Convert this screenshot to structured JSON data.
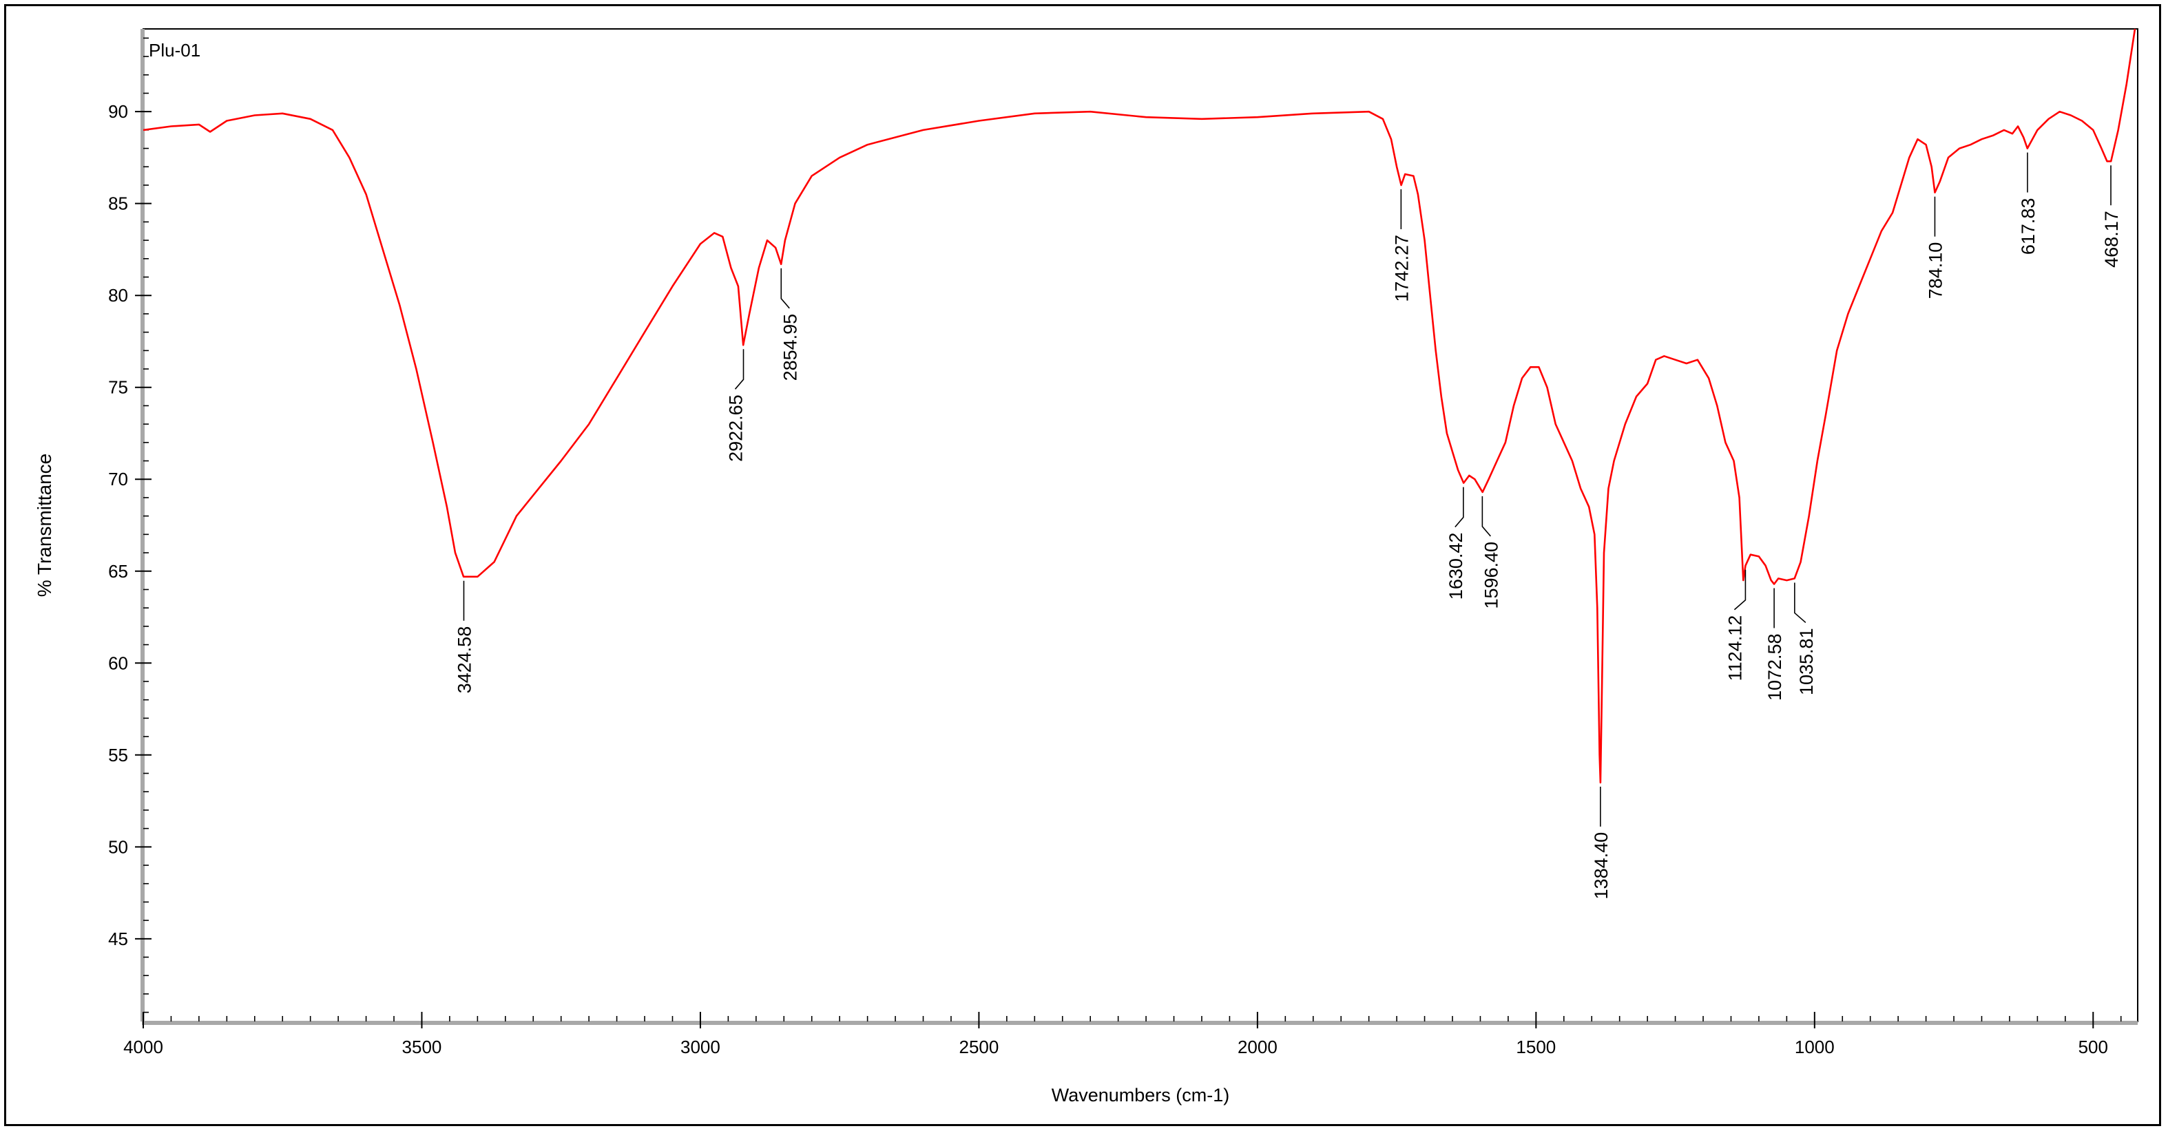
{
  "chart_data": {
    "type": "line",
    "sample_name": "Plu-01",
    "xlabel": "Wavenumbers (cm-1)",
    "ylabel": "% Transmittance",
    "xlim": [
      4000,
      420
    ],
    "ylim": [
      40.5,
      94.5
    ],
    "x_ticks": [
      {
        "value": 4000,
        "label": "4000"
      },
      {
        "value": 3500,
        "label": "3500"
      },
      {
        "value": 3000,
        "label": "3000"
      },
      {
        "value": 2500,
        "label": "2500"
      },
      {
        "value": 2000,
        "label": "2000"
      },
      {
        "value": 1500,
        "label": "1500"
      },
      {
        "value": 1000,
        "label": "1000"
      },
      {
        "value": 500,
        "label": "500"
      }
    ],
    "y_ticks": [
      {
        "value": 90,
        "label": "90"
      },
      {
        "value": 85,
        "label": "85"
      },
      {
        "value": 80,
        "label": "80"
      },
      {
        "value": 75,
        "label": "75"
      },
      {
        "value": 70,
        "label": "70"
      },
      {
        "value": 65,
        "label": "65"
      },
      {
        "value": 60,
        "label": "60"
      },
      {
        "value": 55,
        "label": "55"
      },
      {
        "value": 50,
        "label": "50"
      },
      {
        "value": 45,
        "label": "45"
      }
    ],
    "series": [
      {
        "name": "Plu-01",
        "color": "#ff0000",
        "points": [
          [
            4000,
            89.0
          ],
          [
            3950,
            89.2
          ],
          [
            3900,
            89.3
          ],
          [
            3880,
            88.9
          ],
          [
            3850,
            89.5
          ],
          [
            3800,
            89.8
          ],
          [
            3750,
            89.9
          ],
          [
            3700,
            89.6
          ],
          [
            3660,
            89.0
          ],
          [
            3630,
            87.5
          ],
          [
            3600,
            85.5
          ],
          [
            3570,
            82.5
          ],
          [
            3540,
            79.5
          ],
          [
            3510,
            76.0
          ],
          [
            3480,
            72.0
          ],
          [
            3455,
            68.5
          ],
          [
            3440,
            66.0
          ],
          [
            3425,
            64.7
          ],
          [
            3400,
            64.7
          ],
          [
            3370,
            65.5
          ],
          [
            3330,
            68.0
          ],
          [
            3290,
            69.5
          ],
          [
            3250,
            71.0
          ],
          [
            3200,
            73.0
          ],
          [
            3150,
            75.5
          ],
          [
            3100,
            78.0
          ],
          [
            3050,
            80.5
          ],
          [
            3000,
            82.8
          ],
          [
            2975,
            83.4
          ],
          [
            2960,
            83.2
          ],
          [
            2945,
            81.5
          ],
          [
            2932,
            80.5
          ],
          [
            2923,
            77.3
          ],
          [
            2912,
            79.0
          ],
          [
            2895,
            81.5
          ],
          [
            2880,
            83.0
          ],
          [
            2865,
            82.6
          ],
          [
            2855,
            81.7
          ],
          [
            2848,
            83.0
          ],
          [
            2830,
            85.0
          ],
          [
            2800,
            86.5
          ],
          [
            2750,
            87.5
          ],
          [
            2700,
            88.2
          ],
          [
            2600,
            89.0
          ],
          [
            2500,
            89.5
          ],
          [
            2400,
            89.9
          ],
          [
            2300,
            90.0
          ],
          [
            2200,
            89.7
          ],
          [
            2100,
            89.6
          ],
          [
            2000,
            89.7
          ],
          [
            1900,
            89.9
          ],
          [
            1800,
            90.0
          ],
          [
            1775,
            89.6
          ],
          [
            1760,
            88.5
          ],
          [
            1750,
            87.0
          ],
          [
            1742,
            86.0
          ],
          [
            1735,
            86.6
          ],
          [
            1720,
            86.5
          ],
          [
            1712,
            85.5
          ],
          [
            1700,
            83.0
          ],
          [
            1690,
            80.0
          ],
          [
            1680,
            77.0
          ],
          [
            1670,
            74.5
          ],
          [
            1660,
            72.5
          ],
          [
            1650,
            71.5
          ],
          [
            1640,
            70.5
          ],
          [
            1630,
            69.8
          ],
          [
            1620,
            70.2
          ],
          [
            1610,
            70.0
          ],
          [
            1596,
            69.3
          ],
          [
            1585,
            70.0
          ],
          [
            1570,
            71.0
          ],
          [
            1555,
            72.0
          ],
          [
            1540,
            74.0
          ],
          [
            1525,
            75.5
          ],
          [
            1510,
            76.1
          ],
          [
            1495,
            76.1
          ],
          [
            1480,
            75.0
          ],
          [
            1465,
            73.0
          ],
          [
            1450,
            72.0
          ],
          [
            1435,
            71.0
          ],
          [
            1420,
            69.5
          ],
          [
            1405,
            68.5
          ],
          [
            1395,
            67.0
          ],
          [
            1390,
            63.0
          ],
          [
            1386,
            55.0
          ],
          [
            1384.4,
            53.5
          ],
          [
            1382,
            58.0
          ],
          [
            1378,
            66.0
          ],
          [
            1370,
            69.5
          ],
          [
            1360,
            71.0
          ],
          [
            1340,
            73.0
          ],
          [
            1320,
            74.5
          ],
          [
            1300,
            75.2
          ],
          [
            1285,
            76.5
          ],
          [
            1270,
            76.7
          ],
          [
            1250,
            76.5
          ],
          [
            1230,
            76.3
          ],
          [
            1210,
            76.5
          ],
          [
            1190,
            75.5
          ],
          [
            1175,
            74.0
          ],
          [
            1160,
            72.0
          ],
          [
            1145,
            71.0
          ],
          [
            1135,
            69.0
          ],
          [
            1128,
            64.5
          ],
          [
            1124,
            65.3
          ],
          [
            1115,
            65.9
          ],
          [
            1100,
            65.8
          ],
          [
            1088,
            65.3
          ],
          [
            1078,
            64.5
          ],
          [
            1072.6,
            64.3
          ],
          [
            1065,
            64.6
          ],
          [
            1050,
            64.5
          ],
          [
            1036,
            64.6
          ],
          [
            1025,
            65.5
          ],
          [
            1010,
            68.0
          ],
          [
            995,
            71.0
          ],
          [
            980,
            73.5
          ],
          [
            960,
            77.0
          ],
          [
            940,
            79.0
          ],
          [
            920,
            80.5
          ],
          [
            900,
            82.0
          ],
          [
            880,
            83.5
          ],
          [
            860,
            84.5
          ],
          [
            845,
            86.0
          ],
          [
            830,
            87.5
          ],
          [
            815,
            88.5
          ],
          [
            800,
            88.2
          ],
          [
            790,
            87.0
          ],
          [
            784,
            85.6
          ],
          [
            775,
            86.2
          ],
          [
            760,
            87.5
          ],
          [
            740,
            88.0
          ],
          [
            720,
            88.2
          ],
          [
            700,
            88.5
          ],
          [
            680,
            88.7
          ],
          [
            660,
            89.0
          ],
          [
            645,
            88.8
          ],
          [
            635,
            89.2
          ],
          [
            625,
            88.6
          ],
          [
            618,
            88.0
          ],
          [
            600,
            89.0
          ],
          [
            580,
            89.6
          ],
          [
            560,
            90.0
          ],
          [
            540,
            89.8
          ],
          [
            520,
            89.5
          ],
          [
            500,
            89.0
          ],
          [
            485,
            88.0
          ],
          [
            475,
            87.3
          ],
          [
            468,
            87.3
          ],
          [
            455,
            89.0
          ],
          [
            440,
            91.5
          ],
          [
            425,
            94.5
          ]
        ]
      }
    ],
    "peaks": [
      {
        "x": 3424.58,
        "y": 64.7,
        "label": "3424.58",
        "lead_dx": 0
      },
      {
        "x": 2922.65,
        "y": 77.3,
        "label": "2922.65",
        "lead_dx": -6
      },
      {
        "x": 2854.95,
        "y": 81.7,
        "label": "2854.95",
        "lead_dx": 6
      },
      {
        "x": 1742.27,
        "y": 86.0,
        "label": "1742.27",
        "lead_dx": 0
      },
      {
        "x": 1630.42,
        "y": 69.8,
        "label": "1630.42",
        "lead_dx": -6
      },
      {
        "x": 1596.4,
        "y": 69.3,
        "label": "1596.40",
        "lead_dx": 6
      },
      {
        "x": 1384.4,
        "y": 53.5,
        "label": "1384.40",
        "lead_dx": 0
      },
      {
        "x": 1124.12,
        "y": 65.3,
        "label": "1124.12",
        "lead_dx": -8
      },
      {
        "x": 1072.58,
        "y": 64.3,
        "label": "1072.58",
        "lead_dx": 0
      },
      {
        "x": 1035.81,
        "y": 64.6,
        "label": "1035.81",
        "lead_dx": 8
      },
      {
        "x": 784.1,
        "y": 85.6,
        "label": "784.10",
        "lead_dx": 0
      },
      {
        "x": 617.83,
        "y": 88.0,
        "label": "617.83",
        "lead_dx": 0
      },
      {
        "x": 468.17,
        "y": 87.3,
        "label": "468.17",
        "lead_dx": 0
      }
    ]
  }
}
